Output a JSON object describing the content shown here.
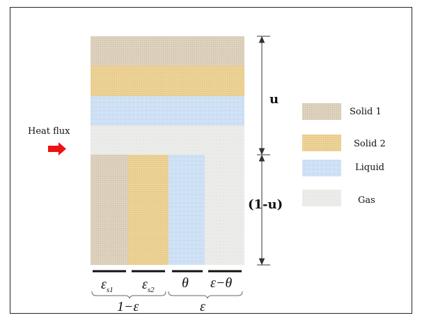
{
  "heat_flux": {
    "label": "Heat flux",
    "arrow_color": "#ee1111"
  },
  "dimensions": {
    "top": "u",
    "bottom": "(1-u)"
  },
  "legend": {
    "items": [
      {
        "label": "Solid 1",
        "color": "#ddcfbc"
      },
      {
        "label": "Solid 2",
        "color": "#ecd191"
      },
      {
        "label": "Liquid",
        "color": "#cfe1f4"
      },
      {
        "label": "Gas",
        "color": "#ececea"
      }
    ]
  },
  "columns": {
    "labels": [
      {
        "main": "ε",
        "sub": "s1"
      },
      {
        "main": "ε",
        "sub": "s2"
      },
      {
        "main": "θ",
        "sub": ""
      },
      {
        "main": "ε−θ",
        "sub": ""
      }
    ],
    "group_labels": [
      "1−ε",
      "ε"
    ]
  }
}
